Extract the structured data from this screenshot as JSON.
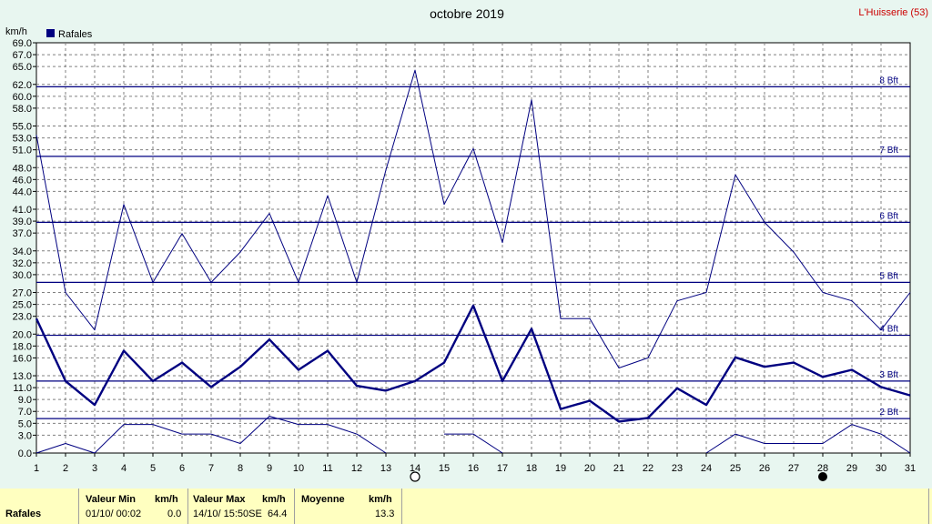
{
  "chart_data": {
    "type": "line",
    "title": "octobre 2019",
    "station": "L'Huisserie (53)",
    "ylabel": "km/h",
    "legend": [
      {
        "label": "Rafales",
        "color": "#000080"
      }
    ],
    "x": [
      1,
      2,
      3,
      4,
      5,
      6,
      7,
      8,
      9,
      10,
      11,
      12,
      13,
      14,
      15,
      16,
      17,
      18,
      19,
      20,
      21,
      22,
      23,
      24,
      25,
      26,
      27,
      28,
      29,
      30,
      31
    ],
    "xtick_labels": [
      "1",
      "2",
      "3",
      "4",
      "5",
      "6",
      "7",
      "8",
      "9",
      "10",
      "11",
      "12",
      "13",
      "14",
      "15",
      "16",
      "17",
      "18",
      "19",
      "20",
      "21",
      "22",
      "23",
      "24",
      "25",
      "26",
      "27",
      "28",
      "29",
      "30",
      "31"
    ],
    "ylim": [
      0,
      69
    ],
    "ytick_labels": [
      "0.0",
      "3.0",
      "5.0",
      "7.0",
      "9.0",
      "11.0",
      "13.0",
      "16.0",
      "18.0",
      "20.0",
      "23.0",
      "25.0",
      "27.0",
      "30.0",
      "32.0",
      "34.0",
      "37.0",
      "39.0",
      "41.0",
      "44.0",
      "46.0",
      "48.0",
      "51.0",
      "53.0",
      "55.0",
      "58.0",
      "60.0",
      "62.0",
      "65.0",
      "67.0",
      "69.0"
    ],
    "beaufort": [
      {
        "label": "2 Bft",
        "value": 5.8
      },
      {
        "label": "3 Bft",
        "value": 12.1
      },
      {
        "label": "4 Bft",
        "value": 19.8
      },
      {
        "label": "5 Bft",
        "value": 28.7
      },
      {
        "label": "6 Bft",
        "value": 38.8
      },
      {
        "label": "7 Bft",
        "value": 49.9
      },
      {
        "label": "8 Bft",
        "value": 61.6
      }
    ],
    "grid": true,
    "series": [
      {
        "name": "max",
        "style": "thin",
        "color": "#000080",
        "values": [
          53.5,
          27.0,
          20.7,
          41.8,
          28.7,
          36.9,
          28.7,
          33.8,
          40.3,
          28.7,
          43.3,
          28.7,
          47.6,
          64.4,
          41.8,
          51.2,
          35.4,
          59.4,
          22.6,
          22.6,
          14.3,
          16.0,
          25.6,
          27.0,
          46.8,
          38.8,
          33.8,
          27.0,
          25.6,
          20.7,
          27.0
        ]
      },
      {
        "name": "moyenne",
        "style": "thick",
        "color": "#000080",
        "values": [
          22.6,
          12.1,
          8.1,
          17.2,
          12.1,
          15.2,
          11.1,
          14.5,
          19.1,
          14.0,
          17.2,
          11.3,
          10.5,
          12.1,
          15.2,
          24.8,
          12.1,
          20.9,
          7.4,
          8.8,
          5.3,
          5.9,
          10.9,
          8.1,
          16.1,
          14.5,
          15.2,
          12.8,
          14.0,
          11.1,
          9.7
        ]
      },
      {
        "name": "min",
        "style": "thin",
        "color": "#000080",
        "values": [
          0.0,
          1.6,
          0.0,
          4.8,
          4.8,
          3.2,
          3.2,
          1.6,
          6.2,
          4.8,
          4.8,
          3.2,
          0.0,
          null,
          3.2,
          3.2,
          0.0,
          null,
          null,
          null,
          null,
          null,
          null,
          0.0,
          3.2,
          1.6,
          1.6,
          1.6,
          4.8,
          3.2,
          0.0
        ]
      }
    ],
    "markers": [
      {
        "label": "new-moon",
        "x": 14,
        "symbol": "○"
      },
      {
        "label": "full-moon",
        "x": 28,
        "symbol": "●"
      }
    ]
  },
  "footer": {
    "row_label": "Rafales",
    "min_header": "Valeur Min",
    "min_unit": "km/h",
    "min_date": "01/10/  00:02",
    "min_value": "0.0",
    "max_header": "Valeur Max",
    "max_unit": "km/h",
    "max_date": "14/10/  15:50SE",
    "max_value": "64.4",
    "avg_header": "Moyenne",
    "avg_unit": "km/h",
    "avg_value": "13.3"
  }
}
